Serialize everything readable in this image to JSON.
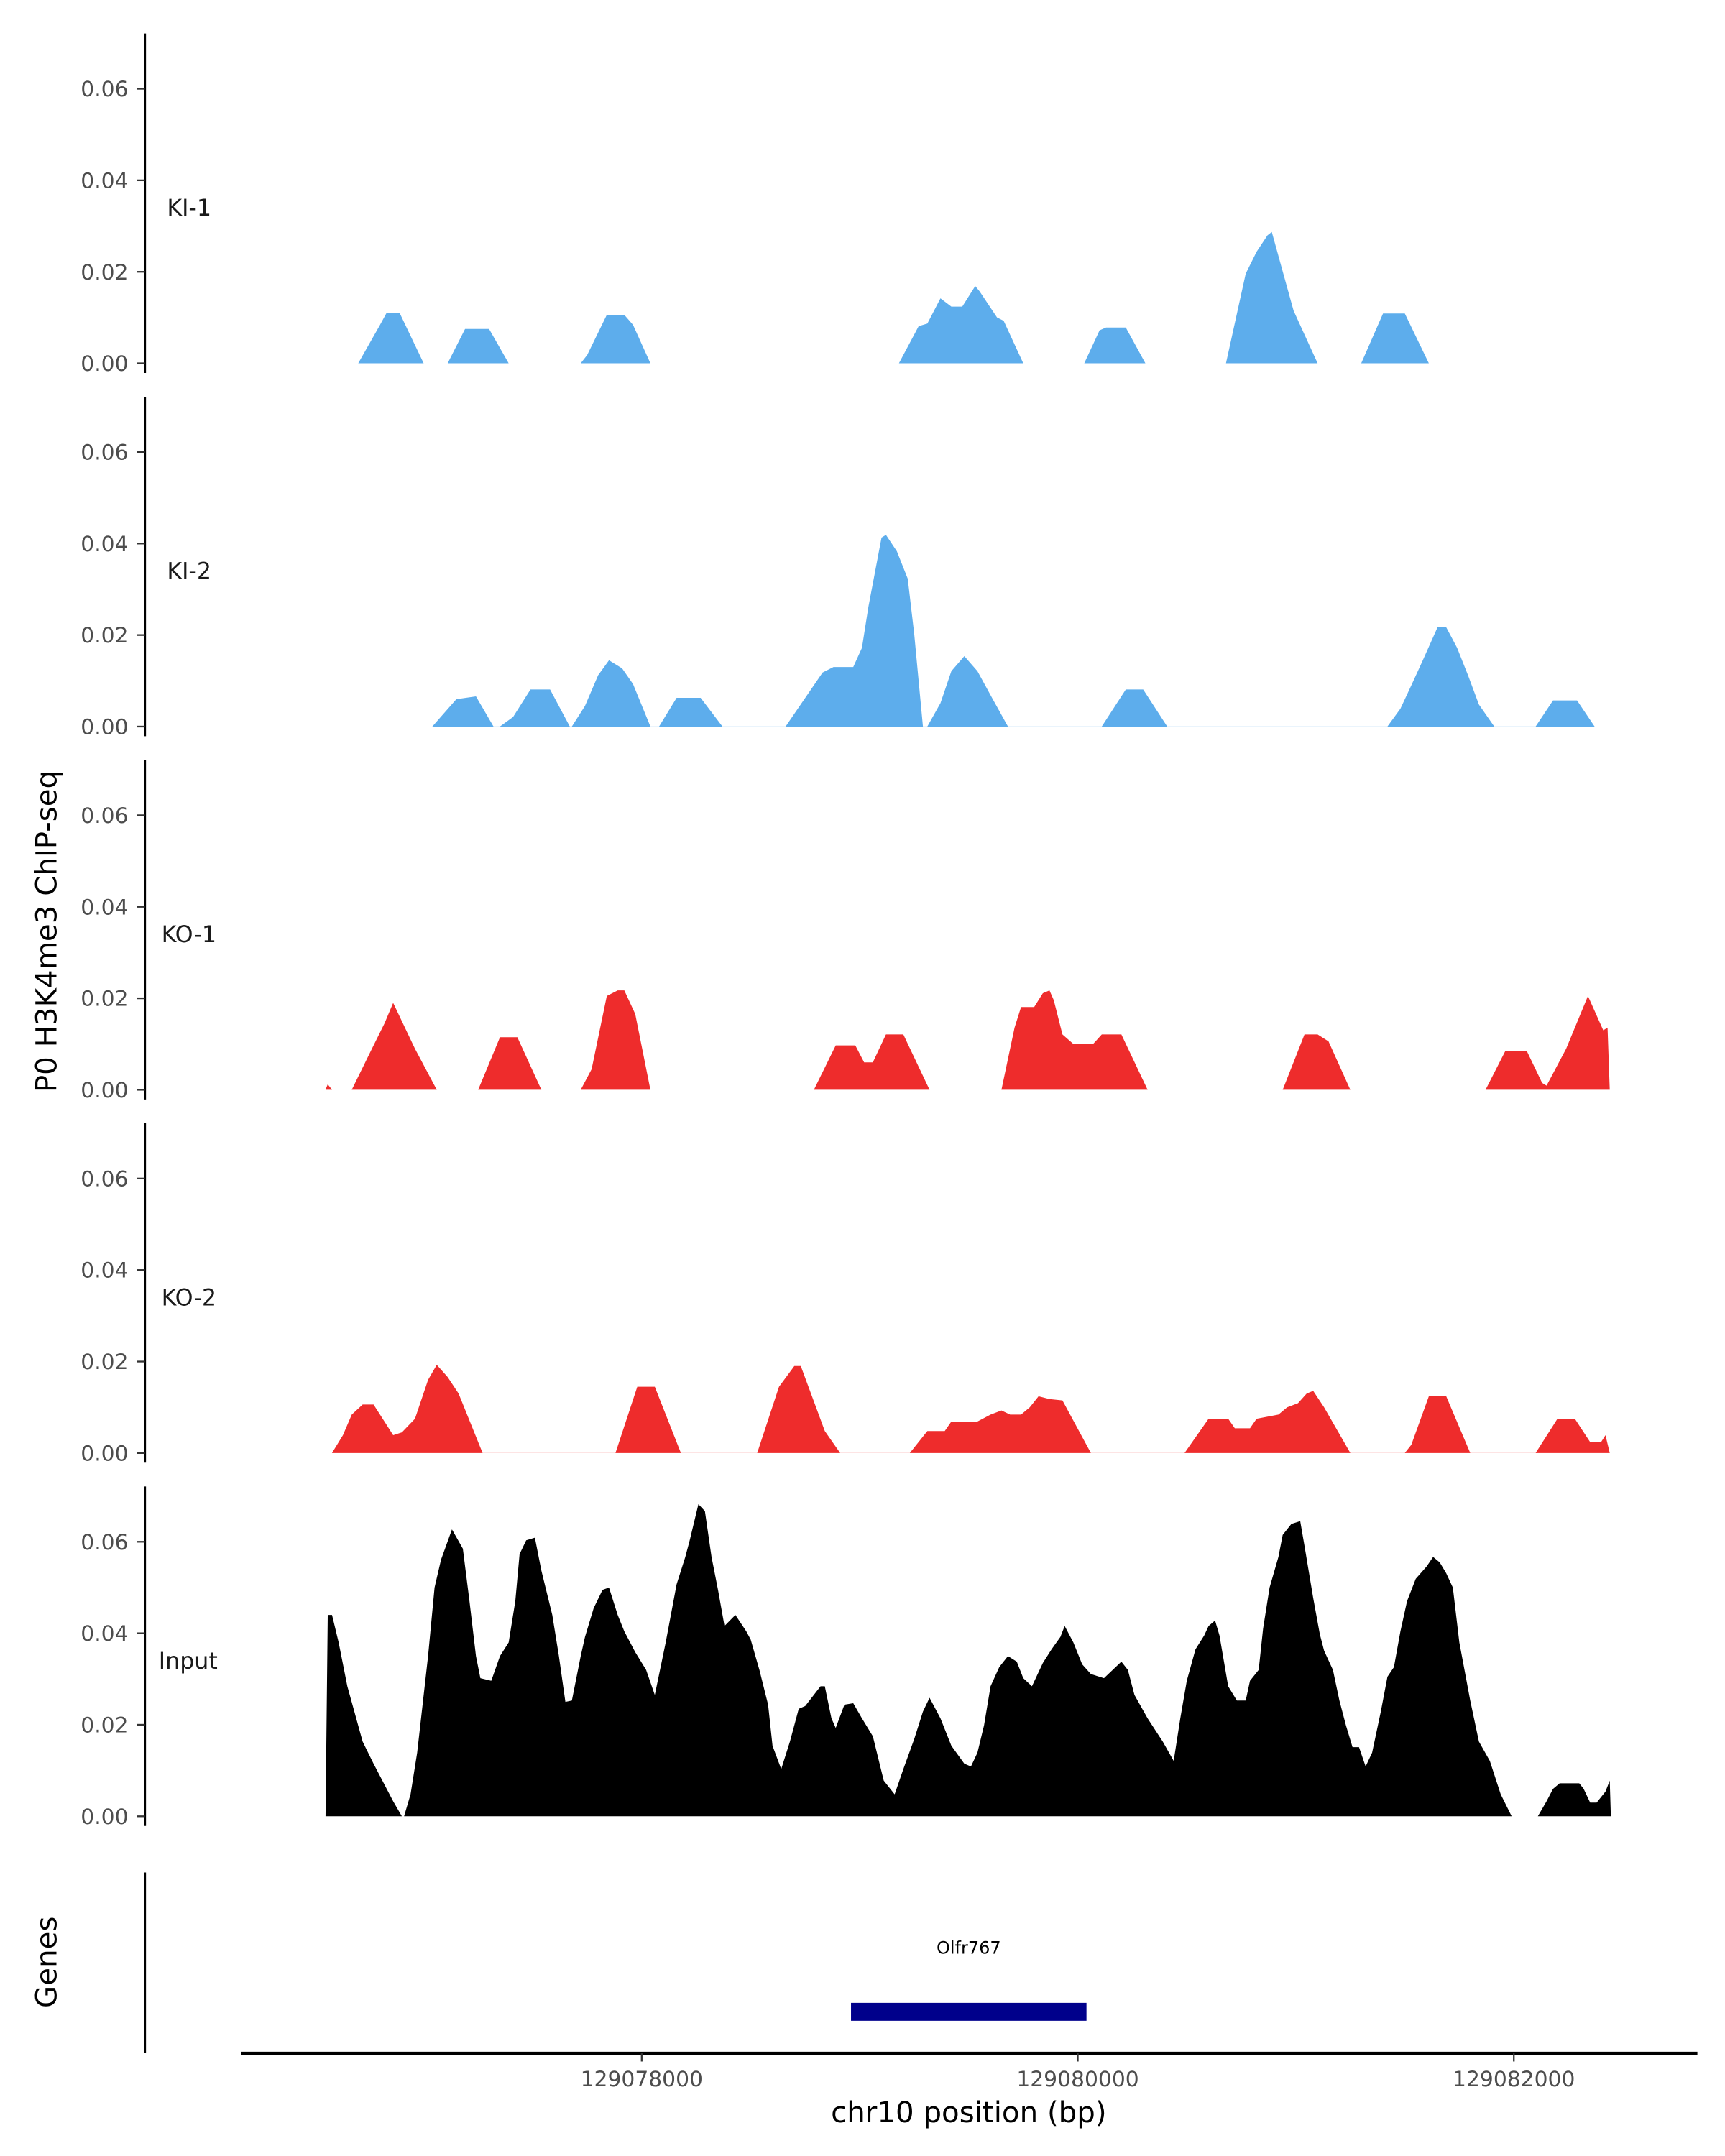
{
  "chart_data": {
    "type": "area",
    "ylabel": "P0 H3K4me3 ChIP-seq",
    "xlabel": "chr10 position (bp)",
    "xlim": [
      129076100,
      129082900
    ],
    "ylim": [
      0,
      0.072
    ],
    "x_ticks": [
      129078000,
      129080000,
      129082000
    ],
    "x_tick_labels": [
      "129078000",
      "129080000",
      "129082000"
    ],
    "y_ticks": [
      0,
      0.02,
      0.04,
      0.06
    ],
    "y_tick_labels": [
      "0.00",
      "0.02",
      "0.04",
      "0.06"
    ],
    "grid": false,
    "tracks": [
      {
        "name": "KI-1",
        "color": "#5DADEC",
        "x": [
          129076700,
          129076800,
          129076830,
          129076890,
          129077000,
          129077110,
          129077190,
          129077300,
          129077390,
          129077720,
          129077750,
          129077840,
          129077920,
          129077960,
          129078040,
          129079180,
          129079270,
          129079310,
          129079370,
          129079420,
          129079470,
          129079530,
          129079550,
          129079630,
          129079660,
          129079750,
          129080030,
          129080100,
          129080130,
          129080220,
          129080310,
          129080680,
          129080770,
          129080820,
          129080870,
          129080890,
          129080990,
          129081100,
          129081300,
          129081400,
          129081500,
          129081610
        ],
        "y": [
          0,
          0.0084,
          0.011,
          0.011,
          0,
          0,
          0.0075,
          0.0075,
          0,
          0,
          0.0018,
          0.0106,
          0.0106,
          0.0084,
          0,
          0,
          0.0081,
          0.0087,
          0.0142,
          0.0124,
          0.0124,
          0.0169,
          0.0157,
          0.01,
          0.0093,
          0,
          0,
          0.0072,
          0.0078,
          0.0078,
          0,
          0,
          0.0196,
          0.0244,
          0.028,
          0.0287,
          0.0115,
          0,
          0,
          0.0109,
          0.0109,
          0
        ]
      },
      {
        "name": "KI-2",
        "color": "#5DADEC",
        "x": [
          129077040,
          129077150,
          129077240,
          129077320,
          129077350,
          129077410,
          129077490,
          129077580,
          129077670,
          129077680,
          129077740,
          129077800,
          129077850,
          129077910,
          129077960,
          129078040,
          129078080,
          129078160,
          129078270,
          129078370,
          129078660,
          129078830,
          129078880,
          129078970,
          129079010,
          129079040,
          129079100,
          129079120,
          129079170,
          129079220,
          129079250,
          129079290,
          129079310,
          129079370,
          129079420,
          129079480,
          129079540,
          129079610,
          129079680,
          129080110,
          129080220,
          129080300,
          129080410,
          129081420,
          129081480,
          129081530,
          129081580,
          129081650,
          129081690,
          129081740,
          129081790,
          129081840,
          129081910,
          129082100,
          129082180,
          129082290,
          129082370
        ],
        "y": [
          0,
          0.006,
          0.0066,
          0,
          0,
          0.0021,
          0.0081,
          0.0081,
          0,
          0,
          0.0045,
          0.0112,
          0.0145,
          0.0127,
          0.0093,
          0,
          0,
          0.0063,
          0.0063,
          0,
          0,
          0.0118,
          0.013,
          0.013,
          0.0172,
          0.0262,
          0.0413,
          0.0419,
          0.0383,
          0.0323,
          0.0202,
          0,
          0,
          0.0051,
          0.0121,
          0.0154,
          0.0121,
          0.006,
          0,
          0,
          0.0081,
          0.0081,
          0,
          0,
          0.0039,
          0.009,
          0.0142,
          0.0217,
          0.0217,
          0.0172,
          0.0112,
          0.0048,
          0,
          0,
          0.0057,
          0.0057,
          0
        ]
      },
      {
        "name": "KO-1",
        "color": "#EE2C2C",
        "x": [
          129076550,
          129076560,
          129076580,
          129076670,
          129076770,
          129076820,
          129076860,
          129076960,
          129077060,
          129077250,
          129077350,
          129077430,
          129077540,
          129077720,
          129077770,
          129077840,
          129077890,
          129077920,
          129077970,
          129078040,
          129078790,
          129078890,
          129078980,
          129079020,
          129079060,
          129079120,
          129079200,
          129079320,
          129079650,
          129079710,
          129079740,
          129079800,
          129079840,
          129079870,
          129079890,
          129079930,
          129079980,
          129080070,
          129080110,
          129080200,
          129080320,
          129080940,
          129081040,
          129081100,
          129081150,
          129081250,
          129081870,
          129081960,
          129082060,
          129082130,
          129082150,
          129082240,
          129082340,
          129082410,
          129082430,
          129082440
        ],
        "y": [
          0,
          0.0012,
          0,
          0,
          0.0097,
          0.0145,
          0.019,
          0.009,
          0,
          0,
          0.0115,
          0.0115,
          0,
          0,
          0.0045,
          0.0205,
          0.0217,
          0.0217,
          0.0166,
          0,
          0,
          0.0097,
          0.0097,
          0.006,
          0.006,
          0.0121,
          0.0121,
          0,
          0,
          0.0136,
          0.0181,
          0.0181,
          0.0211,
          0.0217,
          0.0196,
          0.0121,
          0.01,
          0.01,
          0.0121,
          0.0121,
          0,
          0,
          0.0121,
          0.0121,
          0.0106,
          0,
          0,
          0.0084,
          0.0084,
          0.0015,
          0.0009,
          0.009,
          0.0205,
          0.013,
          0.0136,
          0
        ]
      },
      {
        "name": "KO-2",
        "color": "#EE2C2C",
        "x": [
          129076580,
          129076630,
          129076670,
          129076720,
          129076770,
          129076820,
          129076860,
          129076900,
          129076960,
          129077020,
          129077060,
          129077110,
          129077160,
          129077270,
          129077880,
          129077980,
          129078060,
          129078180,
          129078530,
          129078630,
          129078700,
          129078730,
          129078840,
          129078910,
          129079230,
          129079310,
          129079390,
          129079420,
          129079540,
          129079600,
          129079650,
          129079690,
          129079740,
          129079780,
          129079820,
          129079870,
          129079930,
          129080060,
          129080490,
          129080600,
          129080690,
          129080720,
          129080790,
          129080820,
          129080920,
          129080960,
          129081010,
          129081050,
          129081080,
          129081130,
          129081250,
          129081500,
          129081530,
          129081610,
          129081690,
          129081800,
          129082100,
          129082200,
          129082280,
          129082350,
          129082400,
          129082420,
          129082440
        ],
        "y": [
          0,
          0.0039,
          0.0084,
          0.0106,
          0.0106,
          0.0069,
          0.0039,
          0.0045,
          0.0075,
          0.016,
          0.0193,
          0.0166,
          0.013,
          0,
          0,
          0.0145,
          0.0145,
          0,
          0,
          0.0145,
          0.019,
          0.019,
          0.0048,
          0,
          0,
          0.0048,
          0.0048,
          0.0069,
          0.0069,
          0.0084,
          0.0093,
          0.0084,
          0.0084,
          0.01,
          0.0124,
          0.0118,
          0.0115,
          0,
          0,
          0.0075,
          0.0075,
          0.0054,
          0.0054,
          0.0075,
          0.0084,
          0.01,
          0.0109,
          0.013,
          0.0136,
          0.01,
          0,
          0,
          0.0018,
          0.0124,
          0.0124,
          0,
          0,
          0.0075,
          0.0075,
          0.0024,
          0.0024,
          0.0039,
          0
        ]
      },
      {
        "name": "Input",
        "color": "#000000",
        "x": [
          129076550,
          129076560,
          129076580,
          129076610,
          129076650,
          129076720,
          129076770,
          129076860,
          129076900,
          129076910,
          129076940,
          129076970,
          129077020,
          129077050,
          129077080,
          129077130,
          129077180,
          129077210,
          129077240,
          129077260,
          129077310,
          129077350,
          129077390,
          129077420,
          129077440,
          129077470,
          129077510,
          129077540,
          129077590,
          129077620,
          129077650,
          129077680,
          129077720,
          129077740,
          129077780,
          129077820,
          129077850,
          129077890,
          129077920,
          129077970,
          129078020,
          129078060,
          129078110,
          129078160,
          129078200,
          129078220,
          129078260,
          129078290,
          129078320,
          129078350,
          129078380,
          129078430,
          129078480,
          129078500,
          129078540,
          129078580,
          129078600,
          129078640,
          129078680,
          129078720,
          129078750,
          129078820,
          129078840,
          129078870,
          129078890,
          129078930,
          129078970,
          129079010,
          129079060,
          129079110,
          129079160,
          129079200,
          129079250,
          129079290,
          129079320,
          129079370,
          129079420,
          129079480,
          129079510,
          129079540,
          129079570,
          129079600,
          129079640,
          129079680,
          129079720,
          129079750,
          129079790,
          129079840,
          129079880,
          129079920,
          129079940,
          129079980,
          129080020,
          129080060,
          129080120,
          129080160,
          129080200,
          129080230,
          129080260,
          129080320,
          129080390,
          129080440,
          129080470,
          129080500,
          129080540,
          129080580,
          129080600,
          129080630,
          129080650,
          129080690,
          129080730,
          129080770,
          129080790,
          129080830,
          129080850,
          129080880,
          129080920,
          129080940,
          129080980,
          129081020,
          129081040,
          129081080,
          129081110,
          129081130,
          129081170,
          129081200,
          129081230,
          129081260,
          129081290,
          129081320,
          129081350,
          129081390,
          129081420,
          129081450,
          129081480,
          129081510,
          129081550,
          129081600,
          129081630,
          129081660,
          129081690,
          129081720,
          129081750,
          129081800,
          129081840,
          129081890,
          129081940,
          129081990,
          129082110,
          129082150,
          129082180,
          129082210,
          129082300,
          129082320,
          129082350,
          129082380,
          129082420,
          129082440,
          129082445
        ],
        "y": [
          0,
          0.044,
          0.044,
          0.038,
          0.0284,
          0.0163,
          0.0115,
          0.0033,
          0,
          0,
          0.0048,
          0.0139,
          0.035,
          0.05,
          0.0561,
          0.0627,
          0.0585,
          0.047,
          0.035,
          0.0302,
          0.0296,
          0.035,
          0.038,
          0.047,
          0.0573,
          0.0603,
          0.0609,
          0.0537,
          0.044,
          0.035,
          0.025,
          0.0253,
          0.035,
          0.0392,
          0.0455,
          0.0495,
          0.05,
          0.044,
          0.0404,
          0.0359,
          0.032,
          0.0265,
          0.038,
          0.0507,
          0.0567,
          0.0603,
          0.0682,
          0.0667,
          0.0567,
          0.0495,
          0.0416,
          0.044,
          0.0404,
          0.0386,
          0.032,
          0.0244,
          0.0154,
          0.0103,
          0.0163,
          0.0235,
          0.0241,
          0.0284,
          0.0284,
          0.0214,
          0.0193,
          0.0244,
          0.0247,
          0.0214,
          0.0175,
          0.0078,
          0.0048,
          0.0103,
          0.0169,
          0.0229,
          0.0259,
          0.0214,
          0.0154,
          0.0115,
          0.0109,
          0.0139,
          0.0199,
          0.0284,
          0.0326,
          0.035,
          0.0338,
          0.0302,
          0.0284,
          0.0335,
          0.0365,
          0.0392,
          0.0416,
          0.038,
          0.0332,
          0.0311,
          0.0302,
          0.032,
          0.0338,
          0.032,
          0.0265,
          0.0214,
          0.0163,
          0.0121,
          0.0214,
          0.0296,
          0.0365,
          0.0395,
          0.0416,
          0.0428,
          0.0395,
          0.0284,
          0.0253,
          0.0253,
          0.0296,
          0.032,
          0.041,
          0.05,
          0.0567,
          0.0615,
          0.0639,
          0.0645,
          0.0591,
          0.0477,
          0.0398,
          0.0362,
          0.032,
          0.0253,
          0.0199,
          0.0151,
          0.0151,
          0.0109,
          0.0139,
          0.0229,
          0.0305,
          0.0326,
          0.0404,
          0.047,
          0.0519,
          0.0546,
          0.0567,
          0.0555,
          0.0531,
          0.05,
          0.038,
          0.0253,
          0.0163,
          0.0121,
          0.0048,
          0,
          0,
          0.0033,
          0.006,
          0.0072,
          0.0072,
          0.006,
          0.003,
          0.003,
          0.0054,
          0.0078,
          0
        ]
      }
    ],
    "genes_panel": {
      "label": "Genes",
      "genes": [
        {
          "name": "Olfr767",
          "start": 129078960,
          "end": 129080040,
          "color": "#00008B"
        }
      ]
    }
  }
}
